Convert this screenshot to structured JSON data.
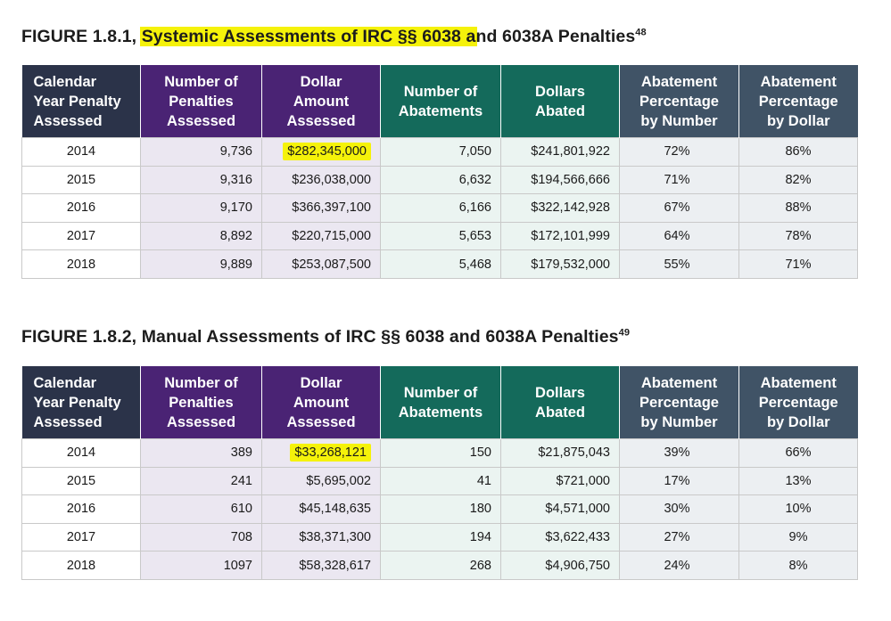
{
  "figure1": {
    "title_prefix": "FIGURE 1.8.1, ",
    "title_highlight": "Systemic Assessments of IRC §§ 6038 a",
    "title_rest": "nd 6038A Penalties",
    "footnote": "48",
    "headers": [
      "Calendar Year Penalty Assessed",
      "Number of Penalties Assessed",
      "Dollar Amount Assessed",
      "Number of Abatements",
      "Dollars Abated",
      "Abatement Percentage by Number",
      "Abatement Percentage by Dollar"
    ],
    "rows": [
      [
        "2014",
        "9,736",
        "$282,345,000",
        "7,050",
        "$241,801,922",
        "72%",
        "86%"
      ],
      [
        "2015",
        "9,316",
        "$236,038,000",
        "6,632",
        "$194,566,666",
        "71%",
        "82%"
      ],
      [
        "2016",
        "9,170",
        "$366,397,100",
        "6,166",
        "$322,142,928",
        "67%",
        "88%"
      ],
      [
        "2017",
        "8,892",
        "$220,715,000",
        "5,653",
        "$172,101,999",
        "64%",
        "78%"
      ],
      [
        "2018",
        "9,889",
        "$253,087,500",
        "5,468",
        "$179,532,000",
        "55%",
        "71%"
      ]
    ]
  },
  "figure2": {
    "title_prefix": "FIGURE 1.8.2, Manual Assessments of IRC §§ 6038 and 6038A Penalties",
    "footnote": "49",
    "headers": [
      "Calendar Year Penalty Assessed",
      "Number of Penalties Assessed",
      "Dollar Amount Assessed",
      "Number of Abatements",
      "Dollars Abated",
      "Abatement Percentage by Number",
      "Abatement Percentage by Dollar"
    ],
    "rows": [
      [
        "2014",
        "389",
        "$33,268,121",
        "150",
        "$21,875,043",
        "39%",
        "66%"
      ],
      [
        "2015",
        "241",
        "$5,695,002",
        "41",
        "$721,000",
        "17%",
        "13%"
      ],
      [
        "2016",
        "610",
        "$45,148,635",
        "180",
        "$4,571,000",
        "30%",
        "10%"
      ],
      [
        "2017",
        "708",
        "$38,371,300",
        "194",
        "$3,622,433",
        "27%",
        "9%"
      ],
      [
        "2018",
        "1097",
        "$58,328,617",
        "268",
        "$4,906,750",
        "24%",
        "8%"
      ]
    ]
  },
  "colors": {
    "header_year": "#2b3349",
    "header_penalties": "#4a2374",
    "header_abatements": "#146a5b",
    "header_percentage": "#405366",
    "highlight": "#f5f20a"
  }
}
